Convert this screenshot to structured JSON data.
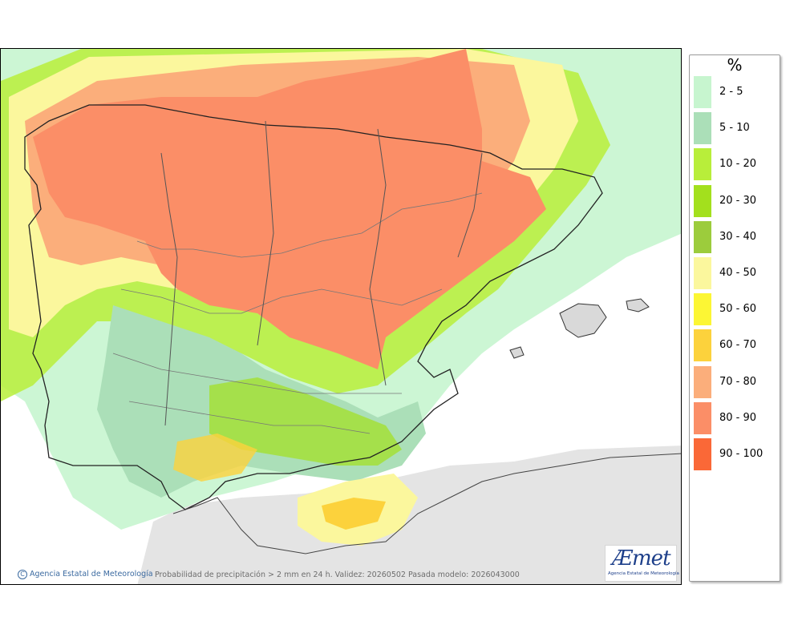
{
  "chart_data": {
    "type": "heatmap",
    "legend": {
      "unit": "%",
      "classes": [
        {
          "label": "2 - 5",
          "color": "#c7f5cf"
        },
        {
          "label": "5 - 10",
          "color": "#abdfb8"
        },
        {
          "label": "10 - 20",
          "color": "#b8ee3a"
        },
        {
          "label": "20 - 30",
          "color": "#a3e01d"
        },
        {
          "label": "30 - 40",
          "color": "#9ccc3c"
        },
        {
          "label": "40 - 50",
          "color": "#fbf79d"
        },
        {
          "label": "50 - 60",
          "color": "#fcf634"
        },
        {
          "label": "60 - 70",
          "color": "#fcd23c"
        },
        {
          "label": "70 - 80",
          "color": "#fbae7b"
        },
        {
          "label": "80 - 90",
          "color": "#fb8e67"
        },
        {
          "label": "90 - 100",
          "color": "#fa6837"
        }
      ]
    }
  },
  "credit": {
    "icon": "copyright-icon",
    "icon_glyph": "C",
    "text": "Agencia Estatal de Meteorología"
  },
  "caption": "Probabilidad de precipitación > 2 mm en 24 h. Validez: 20260502 Pasada modelo: 2026043000",
  "logo": {
    "word_prefix": "Æ",
    "word_rest": "met",
    "subtitle": "Agencia Estatal de Meteorología"
  }
}
